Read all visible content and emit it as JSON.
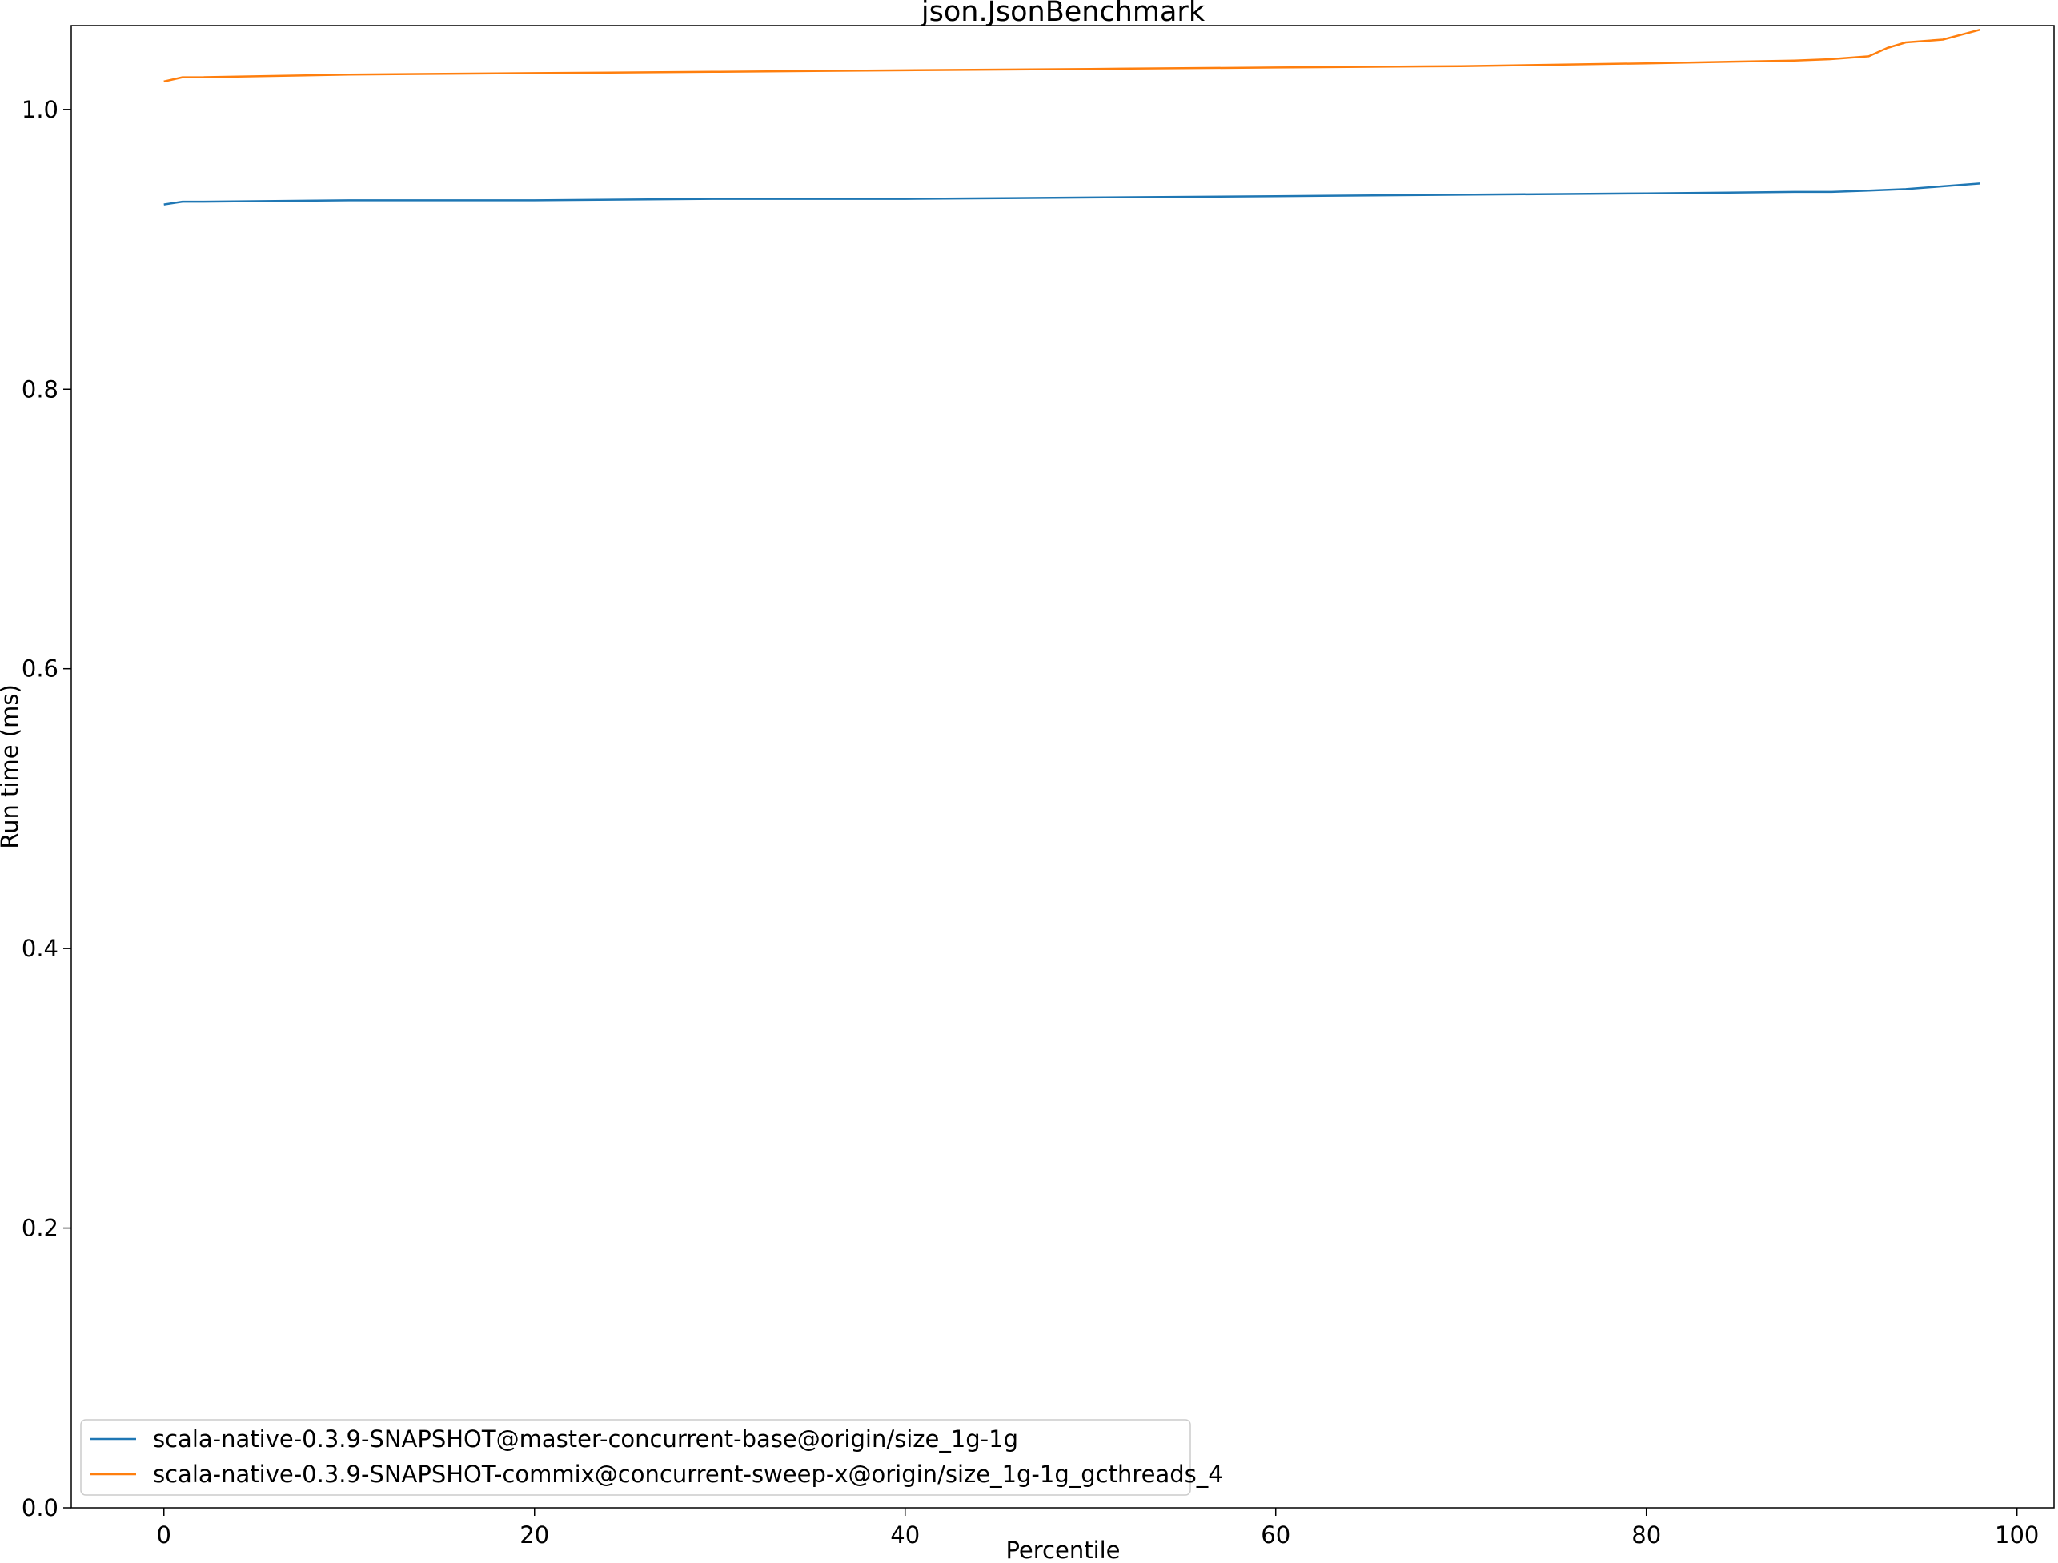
{
  "chart_data": {
    "type": "line",
    "title": "json.JsonBenchmark",
    "xlabel": "Percentile",
    "ylabel": "Run time (ms)",
    "xlim": [
      -5,
      102
    ],
    "ylim": [
      0,
      1.06
    ],
    "xticks": [
      0,
      20,
      40,
      60,
      80,
      100
    ],
    "yticks": [
      0.0,
      0.2,
      0.4,
      0.6,
      0.8,
      1.0
    ],
    "xtick_labels": [
      "0",
      "20",
      "40",
      "60",
      "80",
      "100"
    ],
    "ytick_labels": [
      "0.0",
      "0.2",
      "0.4",
      "0.6",
      "0.8",
      "1.0"
    ],
    "grid": false,
    "legend_position": "lower-left",
    "series": [
      {
        "name": "scala-native-0.3.9-SNAPSHOT@master-concurrent-base@origin/size_1g-1g",
        "color": "#1f77b4",
        "x": [
          0,
          1,
          2,
          10,
          20,
          30,
          40,
          50,
          60,
          70,
          80,
          88,
          90,
          92,
          94,
          96,
          98
        ],
        "y": [
          0.932,
          0.934,
          0.934,
          0.935,
          0.935,
          0.936,
          0.936,
          0.937,
          0.938,
          0.939,
          0.94,
          0.941,
          0.941,
          0.942,
          0.943,
          0.945,
          0.947
        ]
      },
      {
        "name": "scala-native-0.3.9-SNAPSHOT-commix@concurrent-sweep-x@origin/size_1g-1g_gcthreads_4",
        "color": "#ff7f0e",
        "x": [
          0,
          1,
          2,
          10,
          20,
          30,
          40,
          50,
          60,
          70,
          80,
          88,
          90,
          92,
          93,
          94,
          96,
          98
        ],
        "y": [
          1.02,
          1.023,
          1.023,
          1.025,
          1.026,
          1.027,
          1.028,
          1.029,
          1.03,
          1.031,
          1.033,
          1.035,
          1.036,
          1.038,
          1.044,
          1.048,
          1.05,
          1.057
        ]
      }
    ]
  }
}
